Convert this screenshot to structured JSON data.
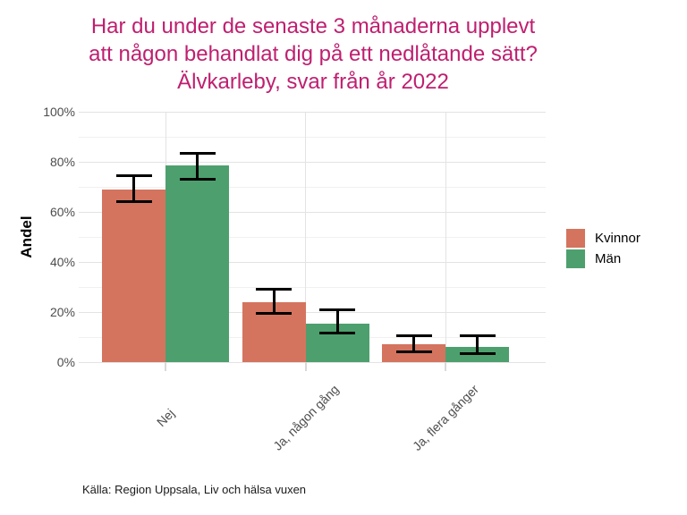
{
  "title": {
    "lines": [
      "Har du under de senaste 3 månaderna upplevt",
      "att någon behandlat dig på ett nedlåtande sätt?",
      "Älvkarleby, svar från år 2022"
    ],
    "color": "#BF1F6F"
  },
  "y_axis": {
    "label": "Andel",
    "tick_labels": [
      "0%",
      "20%",
      "40%",
      "60%",
      "80%",
      "100%"
    ],
    "tick_values": [
      0,
      20,
      40,
      60,
      80,
      100
    ]
  },
  "x_axis": {
    "categories": [
      "Nej",
      "Ja, någon gång",
      "Ja, flera gånger"
    ]
  },
  "legend": {
    "position": "right",
    "items": [
      {
        "label": "Kvinnor",
        "color": "#D4745F"
      },
      {
        "label": "Män",
        "color": "#4DA06E"
      }
    ]
  },
  "caption": "Källa: Region Uppsala, Liv och hälsa vuxen",
  "colors": {
    "background": "#FFFFFF",
    "grid_major": "#E3E3E3",
    "grid_minor": "#F1F1F1",
    "axis_text": "#4D4D4D",
    "error_bar": "#000000"
  },
  "chart_data": {
    "type": "bar",
    "title": "Har du under de senaste 3 månaderna upplevt att någon behandlat dig på ett nedlåtande sätt? Älvkarleby, svar från år 2022",
    "categories": [
      "Nej",
      "Ja, någon gång",
      "Ja, flera gånger"
    ],
    "series": [
      {
        "name": "Kvinnor",
        "color": "#D4745F",
        "values": [
          69,
          24,
          7
        ],
        "error_low": [
          64,
          19.5,
          4
        ],
        "error_high": [
          74.5,
          29,
          10.5
        ]
      },
      {
        "name": "Män",
        "color": "#4DA06E",
        "values": [
          78.5,
          15.5,
          6
        ],
        "error_low": [
          73,
          11.5,
          3.5
        ],
        "error_high": [
          83.5,
          21,
          10.5
        ]
      }
    ],
    "xlabel": "",
    "ylabel": "Andel",
    "ylim": [
      0,
      100
    ],
    "grid": true,
    "error_bars": true,
    "legend_position": "right"
  }
}
